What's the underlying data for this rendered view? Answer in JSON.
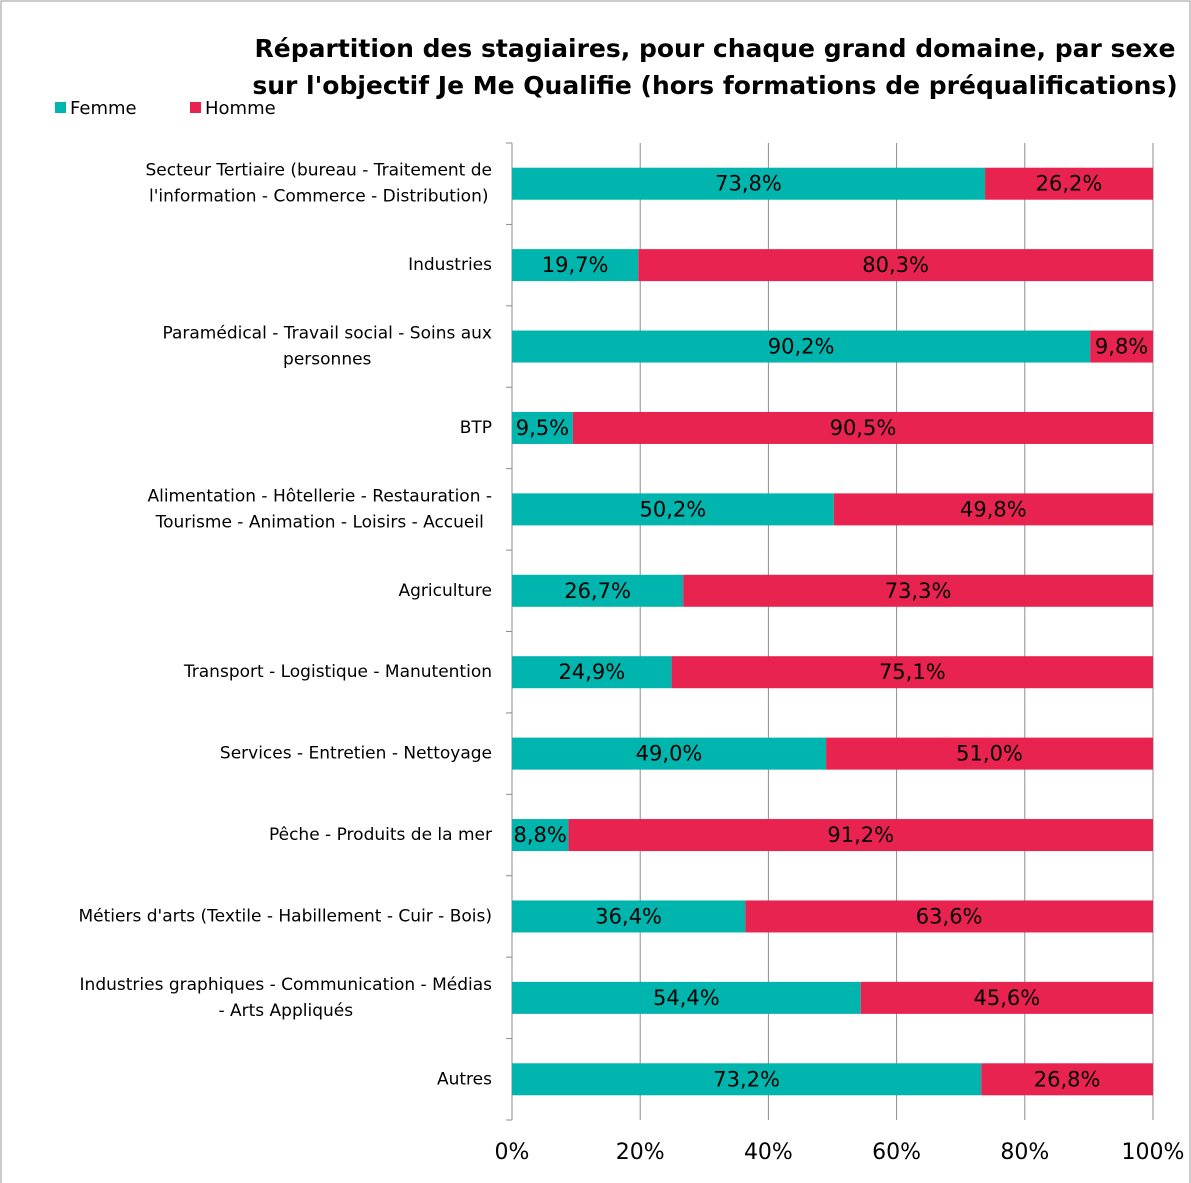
{
  "chart_data": {
    "type": "stacked-barh",
    "title": [
      "Répartition des stagiaires, pour chaque grand domaine, par sexe",
      "sur l'objectif Je Me Qualifie (hors formations de préqualifications)"
    ],
    "categories": [
      [
        "Secteur Tertiaire (bureau - Traitement de",
        "l'information - Commerce - Distribution)"
      ],
      [
        "Industries"
      ],
      [
        "Paramédical - Travail social - Soins aux",
        "personnes"
      ],
      [
        "BTP"
      ],
      [
        "Alimentation -  Hôtellerie - Restauration -",
        "Tourisme - Animation - Loisirs - Accueil"
      ],
      [
        "Agriculture"
      ],
      [
        "Transport - Logistique - Manutention"
      ],
      [
        "Services - Entretien - Nettoyage"
      ],
      [
        "Pêche - Produits de la mer"
      ],
      [
        "Métiers d'arts (Textile - Habillement - Cuir - Bois)"
      ],
      [
        "Industries graphiques - Communication - Médias",
        "- Arts Appliqués"
      ],
      [
        "Autres"
      ]
    ],
    "series": [
      {
        "name": "Femme",
        "color": "#00b5ad",
        "values": [
          73.8,
          19.7,
          90.2,
          9.5,
          50.2,
          26.7,
          24.9,
          49.0,
          8.8,
          36.4,
          54.4,
          73.2
        ],
        "value_labels": [
          "73,8%",
          "19,7%",
          "90,2%",
          "9,5%",
          "50,2%",
          "26,7%",
          "24,9%",
          "49,0%",
          "8,8%",
          "36,4%",
          "54,4%",
          "73,2%"
        ]
      },
      {
        "name": "Homme",
        "color": "#e8234f",
        "values": [
          26.2,
          80.3,
          9.8,
          90.5,
          49.8,
          73.3,
          75.1,
          51.0,
          91.2,
          63.6,
          45.6,
          26.8
        ],
        "value_labels": [
          "26,2%",
          "80,3%",
          "9,8%",
          "90,5%",
          "49,8%",
          "73,3%",
          "75,1%",
          "51,0%",
          "91,2%",
          "63,6%",
          "45,6%",
          "26,8%"
        ]
      }
    ],
    "xlim": [
      0,
      100
    ],
    "xticks": [
      {
        "value": 0,
        "label": "0%"
      },
      {
        "value": 20,
        "label": "20%"
      },
      {
        "value": 40,
        "label": "40%"
      },
      {
        "value": 60,
        "label": "60%"
      },
      {
        "value": 80,
        "label": "80%"
      },
      {
        "value": 100,
        "label": "100%"
      }
    ],
    "grid": true,
    "legend": "top-left"
  }
}
